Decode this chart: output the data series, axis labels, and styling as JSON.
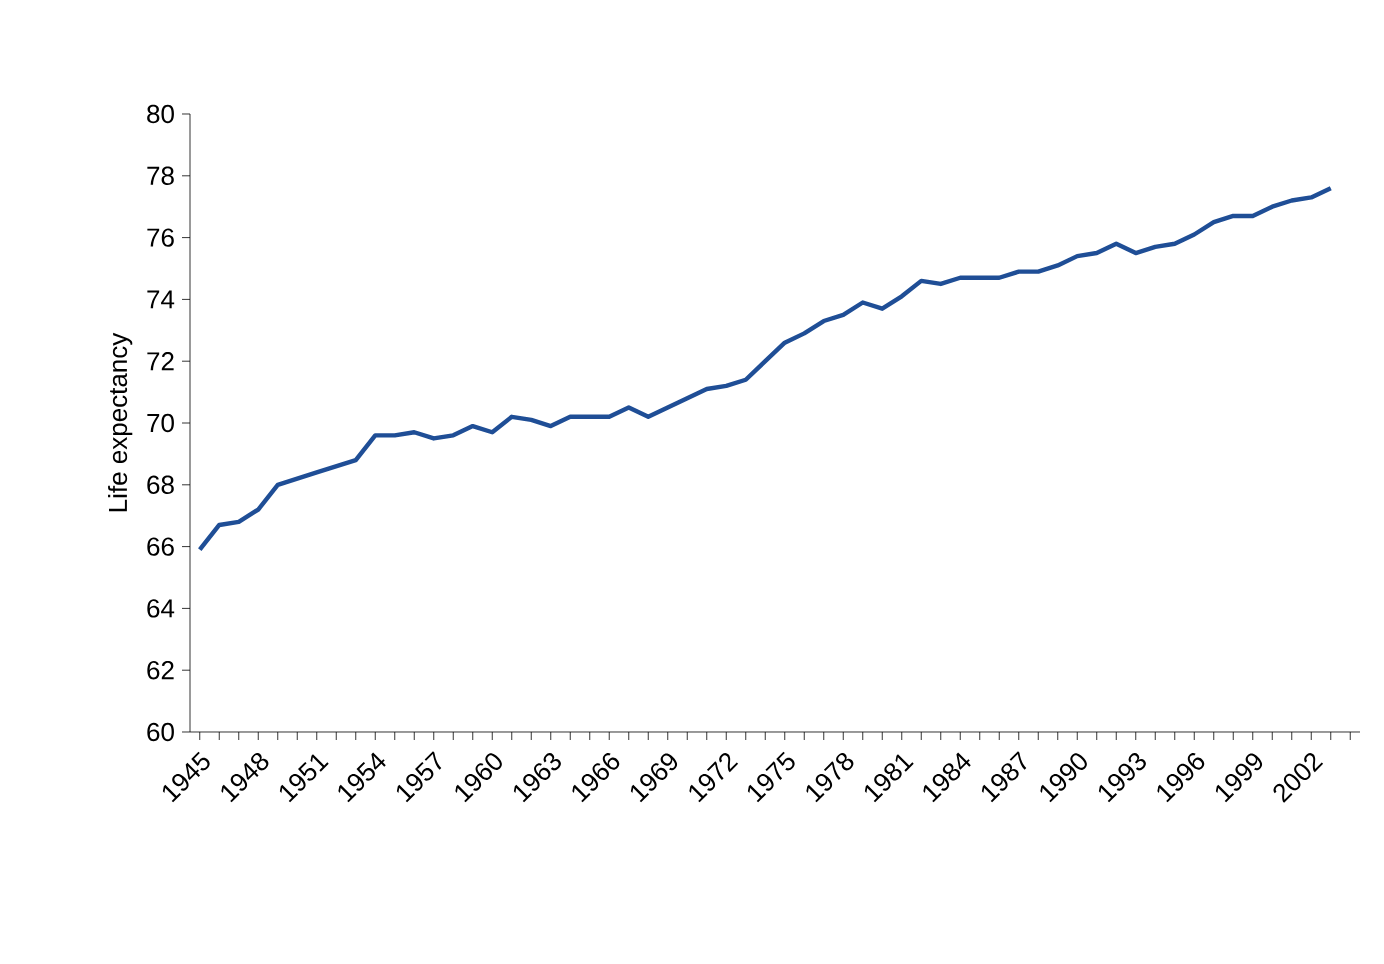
{
  "chart_data": {
    "type": "line",
    "ylabel": "Life expectancy",
    "x": [
      1945,
      1946,
      1947,
      1948,
      1949,
      1950,
      1951,
      1952,
      1953,
      1954,
      1955,
      1956,
      1957,
      1958,
      1959,
      1960,
      1961,
      1962,
      1963,
      1964,
      1965,
      1966,
      1967,
      1968,
      1969,
      1970,
      1971,
      1972,
      1973,
      1974,
      1975,
      1976,
      1977,
      1978,
      1979,
      1980,
      1981,
      1982,
      1983,
      1984,
      1985,
      1986,
      1987,
      1988,
      1989,
      1990,
      1991,
      1992,
      1993,
      1994,
      1995,
      1996,
      1997,
      1998,
      1999,
      2000,
      2001,
      2002,
      2003
    ],
    "series": [
      {
        "color": "#1f4e96",
        "values": [
          65.9,
          66.7,
          66.8,
          67.2,
          68.0,
          68.2,
          68.4,
          68.6,
          68.8,
          69.6,
          69.6,
          69.7,
          69.5,
          69.6,
          69.9,
          69.7,
          70.2,
          70.1,
          69.9,
          70.2,
          70.2,
          70.2,
          70.5,
          70.2,
          70.5,
          70.8,
          71.1,
          71.2,
          71.4,
          72.0,
          72.6,
          72.9,
          73.3,
          73.5,
          73.9,
          73.7,
          74.1,
          74.6,
          74.5,
          74.7,
          74.7,
          74.7,
          74.9,
          74.9,
          75.1,
          75.4,
          75.5,
          75.8,
          75.5,
          75.7,
          75.8,
          76.1,
          76.5,
          76.7,
          76.7,
          77.0,
          77.2,
          77.3,
          77.6
        ]
      }
    ],
    "xlim": [
      1944.5,
      2004.5
    ],
    "xticks": [
      1945,
      {
        "value": 1946,
        "label": null
      },
      {
        "value": 1947,
        "label": null
      },
      1948,
      {
        "value": 1949,
        "label": null
      },
      {
        "value": 1950,
        "label": null
      },
      1951,
      {
        "value": 1952,
        "label": null
      },
      {
        "value": 1953,
        "label": null
      },
      1954,
      {
        "value": 1955,
        "label": null
      },
      {
        "value": 1956,
        "label": null
      },
      1957,
      {
        "value": 1958,
        "label": null
      },
      {
        "value": 1959,
        "label": null
      },
      1960,
      {
        "value": 1961,
        "label": null
      },
      {
        "value": 1962,
        "label": null
      },
      1963,
      {
        "value": 1964,
        "label": null
      },
      {
        "value": 1965,
        "label": null
      },
      1966,
      {
        "value": 1967,
        "label": null
      },
      {
        "value": 1968,
        "label": null
      },
      1969,
      {
        "value": 1970,
        "label": null
      },
      {
        "value": 1971,
        "label": null
      },
      1972,
      {
        "value": 1973,
        "label": null
      },
      {
        "value": 1974,
        "label": null
      },
      1975,
      {
        "value": 1976,
        "label": null
      },
      {
        "value": 1977,
        "label": null
      },
      1978,
      {
        "value": 1979,
        "label": null
      },
      {
        "value": 1980,
        "label": null
      },
      1981,
      {
        "value": 1982,
        "label": null
      },
      {
        "value": 1983,
        "label": null
      },
      1984,
      {
        "value": 1985,
        "label": null
      },
      {
        "value": 1986,
        "label": null
      },
      1987,
      {
        "value": 1988,
        "label": null
      },
      {
        "value": 1989,
        "label": null
      },
      1990,
      {
        "value": 1991,
        "label": null
      },
      {
        "value": 1992,
        "label": null
      },
      1993,
      {
        "value": 1994,
        "label": null
      },
      {
        "value": 1995,
        "label": null
      },
      1996,
      {
        "value": 1997,
        "label": null
      },
      {
        "value": 1998,
        "label": null
      },
      1999,
      {
        "value": 2000,
        "label": null
      },
      {
        "value": 2001,
        "label": null
      },
      2002,
      {
        "value": 2003,
        "label": null
      },
      {
        "value": 2004,
        "label": null
      }
    ],
    "ylim": [
      60,
      80
    ],
    "yticks": [
      60,
      62,
      64,
      66,
      68,
      70,
      72,
      74,
      76,
      78,
      80
    ],
    "grid": false,
    "marker": "none",
    "line_style": "solid"
  }
}
